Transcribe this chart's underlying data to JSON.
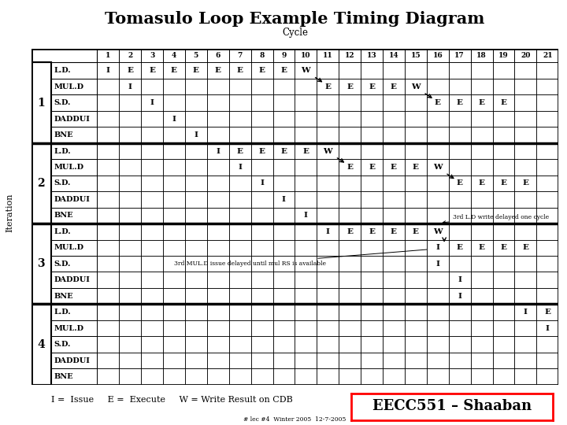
{
  "title": "Tomasulo Loop Example Timing Diagram",
  "subtitle": "Cycle",
  "ylabel": "Iteration",
  "n_cycles": 21,
  "n_iter": 4,
  "n_instr": 5,
  "instructions": [
    "L.D.",
    "MUL.D",
    "S.D.",
    "DADDUI",
    "BNE"
  ],
  "legend_text": "I =  Issue     E =  Execute     W = Write Result on CDB",
  "watermark": "EECC551 – Shaaban",
  "footnote": "# lec #4  Winter 2005  12-7-2005",
  "cells": {
    "1": {
      "L.D.": [
        [
          1,
          "I"
        ],
        [
          2,
          "E"
        ],
        [
          3,
          "E"
        ],
        [
          4,
          "E"
        ],
        [
          5,
          "E"
        ],
        [
          6,
          "E"
        ],
        [
          7,
          "E"
        ],
        [
          8,
          "E"
        ],
        [
          9,
          "E"
        ],
        [
          10,
          "W"
        ]
      ],
      "MUL.D": [
        [
          2,
          "I"
        ],
        [
          11,
          "E"
        ],
        [
          12,
          "E"
        ],
        [
          13,
          "E"
        ],
        [
          14,
          "E"
        ],
        [
          15,
          "W"
        ]
      ],
      "S.D.": [
        [
          3,
          "I"
        ],
        [
          16,
          "E"
        ],
        [
          17,
          "E"
        ],
        [
          18,
          "E"
        ],
        [
          19,
          "E"
        ]
      ],
      "DADDUI": [
        [
          4,
          "I"
        ]
      ],
      "BNE": [
        [
          5,
          "I"
        ]
      ]
    },
    "2": {
      "L.D.": [
        [
          6,
          "I"
        ],
        [
          7,
          "E"
        ],
        [
          8,
          "E"
        ],
        [
          9,
          "E"
        ],
        [
          10,
          "E"
        ],
        [
          11,
          "W"
        ]
      ],
      "MUL.D": [
        [
          7,
          "I"
        ],
        [
          12,
          "E"
        ],
        [
          13,
          "E"
        ],
        [
          14,
          "E"
        ],
        [
          15,
          "E"
        ],
        [
          16,
          "W"
        ]
      ],
      "S.D.": [
        [
          8,
          "I"
        ],
        [
          17,
          "E"
        ],
        [
          18,
          "E"
        ],
        [
          19,
          "E"
        ],
        [
          20,
          "E"
        ]
      ],
      "DADDUI": [
        [
          9,
          "I"
        ]
      ],
      "BNE": [
        [
          10,
          "I"
        ]
      ]
    },
    "3": {
      "L.D.": [
        [
          11,
          "I"
        ],
        [
          12,
          "E"
        ],
        [
          13,
          "E"
        ],
        [
          14,
          "E"
        ],
        [
          15,
          "E"
        ],
        [
          16,
          "W"
        ]
      ],
      "MUL.D": [
        [
          16,
          "I"
        ],
        [
          17,
          "E"
        ],
        [
          18,
          "E"
        ],
        [
          19,
          "E"
        ],
        [
          20,
          "E"
        ]
      ],
      "S.D.": [
        [
          16,
          "I"
        ]
      ],
      "DADDUI": [
        [
          17,
          "I"
        ]
      ],
      "BNE": [
        [
          17,
          "I"
        ]
      ]
    },
    "4": {
      "L.D.": [
        [
          20,
          "I"
        ],
        [
          21,
          "E"
        ]
      ],
      "MUL.D": [
        [
          21,
          "I"
        ]
      ],
      "S.D.": [],
      "DADDUI": [],
      "BNE": []
    }
  },
  "bg_color": "#ffffff"
}
